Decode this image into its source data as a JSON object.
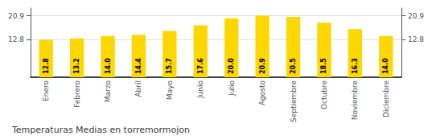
{
  "chart_data": {
    "type": "bar",
    "title": "Temperaturas Medias en torremormojon",
    "categories": [
      "Enero",
      "Febrero",
      "Marzo",
      "Abril",
      "Mayo",
      "Junio",
      "Julio",
      "Agosto",
      "Septiembre",
      "Octubre",
      "Noviembre",
      "Diciembre"
    ],
    "values": [
      12.8,
      13.2,
      14.0,
      14.4,
      15.7,
      17.6,
      20.0,
      20.9,
      20.5,
      18.5,
      16.3,
      14.0
    ],
    "value_labels": [
      "12.8",
      "13.2",
      "14.0",
      "14.4",
      "15.7",
      "17.6",
      "20.0",
      "20.9",
      "20.5",
      "18.5",
      "16.3",
      "14.0"
    ],
    "data_labels": true,
    "color": "#FFD700",
    "ylim": [
      0,
      23.5
    ],
    "yticks": [
      12.8,
      20.9
    ],
    "y2lim": [
      0,
      23.5
    ],
    "y2ticks": [
      12.8,
      20.9
    ],
    "grid": true
  }
}
